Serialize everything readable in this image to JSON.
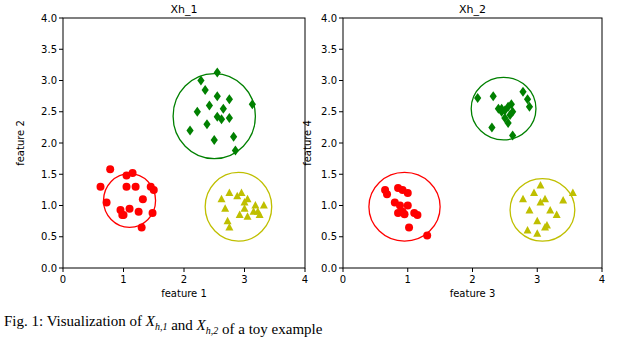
{
  "chart_data": [
    {
      "type": "scatter",
      "title": "Xh_1",
      "x_label": "feature 1",
      "y_label": "feature 2",
      "xlim": [
        0,
        4
      ],
      "ylim": [
        0,
        4
      ],
      "xticks": [
        0,
        1,
        2,
        3,
        4
      ],
      "yticks": [
        {
          "value": 0,
          "label": "0.0"
        },
        {
          "value": 0.5,
          "label": "0.5"
        },
        {
          "value": 1,
          "label": "1.0"
        },
        {
          "value": 1.5,
          "label": "1.5"
        },
        {
          "value": 2,
          "label": "2.0"
        },
        {
          "value": 2.5,
          "label": "2.5"
        },
        {
          "value": 3,
          "label": "3.0"
        },
        {
          "value": 3.5,
          "label": "3.5"
        },
        {
          "value": 4,
          "label": "4.0"
        }
      ],
      "grid": false,
      "series": [
        {
          "color": "#ff0000",
          "marker": "circle",
          "center": [
            1.1,
            1.08
          ],
          "radius": 0.43,
          "x": [
            0.78,
            0.62,
            0.72,
            0.95,
            1.0,
            1.05,
            1.15,
            1.05,
            1.2,
            1.1,
            1.25,
            1.32,
            1.5,
            1.45,
            1.48,
            1.3,
            0.98
          ],
          "values": [
            1.58,
            1.3,
            1.05,
            0.93,
            0.85,
            1.48,
            1.52,
            1.3,
            1.3,
            0.95,
            0.9,
            1.1,
            1.25,
            1.3,
            0.88,
            0.65,
            0.85
          ]
        },
        {
          "color": "#008000",
          "marker": "diamond",
          "center": [
            2.5,
            2.43
          ],
          "radius": 0.68,
          "x": [
            2.28,
            2.55,
            2.1,
            2.35,
            2.55,
            2.65,
            2.55,
            2.62,
            2.75,
            2.38,
            2.5,
            2.22,
            2.82,
            2.85,
            3.13,
            2.75,
            2.42
          ],
          "values": [
            3.0,
            3.13,
            2.2,
            2.85,
            2.75,
            2.55,
            2.42,
            2.38,
            2.4,
            2.3,
            2.05,
            2.5,
            2.1,
            1.88,
            2.62,
            2.7,
            2.6
          ]
        },
        {
          "color": "#bfbf00",
          "marker": "triangle",
          "center": [
            2.9,
            0.98
          ],
          "radius": 0.55,
          "x": [
            2.62,
            2.68,
            2.75,
            2.72,
            2.75,
            2.88,
            2.92,
            3.0,
            3.05,
            3.05,
            3.15,
            3.22,
            3.25,
            3.18,
            3.32,
            2.95,
            3.0
          ],
          "values": [
            1.1,
            0.95,
            0.65,
            0.75,
            1.2,
            1.15,
            0.85,
            1.05,
            1.1,
            0.82,
            0.9,
            0.9,
            0.85,
            1.0,
            1.0,
            1.2,
            0.95
          ]
        }
      ]
    },
    {
      "type": "scatter",
      "title": "Xh_2",
      "x_label": "feature 3",
      "y_label": "feature 4",
      "xlim": [
        0,
        4
      ],
      "ylim": [
        0,
        4
      ],
      "xticks": [
        0,
        1,
        2,
        3,
        4
      ],
      "yticks": [
        {
          "value": 0,
          "label": "0.0"
        },
        {
          "value": 0.5,
          "label": "0.5"
        },
        {
          "value": 1,
          "label": "1.0"
        },
        {
          "value": 1.5,
          "label": "1.5"
        },
        {
          "value": 2,
          "label": "2.0"
        },
        {
          "value": 2.5,
          "label": "2.5"
        },
        {
          "value": 3,
          "label": "3.0"
        },
        {
          "value": 3.5,
          "label": "3.5"
        },
        {
          "value": 4,
          "label": "4.0"
        }
      ],
      "grid": false,
      "series": [
        {
          "color": "#ff0000",
          "marker": "circle",
          "center": [
            0.95,
            0.98
          ],
          "radius": 0.55,
          "x": [
            0.65,
            0.68,
            0.85,
            0.92,
            1.0,
            0.8,
            0.88,
            1.0,
            0.85,
            0.95,
            1.1,
            1.15,
            1.02,
            1.3,
            0.92
          ],
          "values": [
            1.25,
            1.18,
            1.28,
            1.25,
            1.2,
            1.05,
            1.0,
            1.0,
            0.88,
            0.86,
            0.88,
            0.85,
            0.65,
            0.52,
            0.9
          ]
        },
        {
          "color": "#008000",
          "marker": "diamond",
          "center": [
            2.48,
            2.55
          ],
          "radius": 0.5,
          "x": [
            2.08,
            2.32,
            2.4,
            2.45,
            2.5,
            2.55,
            2.5,
            2.6,
            2.62,
            2.3,
            2.55,
            2.78,
            2.88,
            2.62,
            2.85,
            2.45,
            2.58
          ],
          "values": [
            2.72,
            2.75,
            2.55,
            2.5,
            2.52,
            2.58,
            2.4,
            2.62,
            2.5,
            2.25,
            2.32,
            2.82,
            2.58,
            2.12,
            2.7,
            2.55,
            2.45
          ]
        },
        {
          "color": "#bfbf00",
          "marker": "triangle",
          "center": [
            3.08,
            0.93
          ],
          "radius": 0.5,
          "x": [
            2.95,
            2.78,
            2.88,
            3.05,
            3.05,
            3.12,
            3.2,
            3.0,
            2.85,
            3.12,
            3.0,
            3.4,
            3.55,
            3.3,
            3.15
          ],
          "values": [
            1.2,
            1.1,
            0.92,
            1.32,
            1.05,
            1.1,
            0.92,
            0.75,
            0.6,
            0.65,
            0.55,
            1.08,
            1.2,
            0.85,
            0.68
          ]
        }
      ]
    }
  ],
  "caption": [
    {
      "text": "Fig. 1: Visualization of "
    },
    {
      "text": "X",
      "sub": "h,1"
    },
    {
      "text": " and "
    },
    {
      "text": "X",
      "sub": "h,2"
    },
    {
      "text": " of a toy example"
    }
  ]
}
